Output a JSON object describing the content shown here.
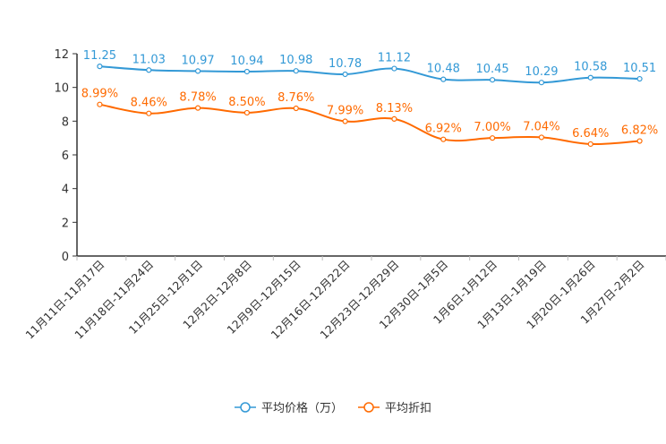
{
  "chart_data": {
    "type": "line",
    "title": "",
    "xlabel": "",
    "ylabel": "",
    "ylim": [
      0,
      12
    ],
    "yticks": [
      0,
      2,
      4,
      6,
      8,
      10,
      12
    ],
    "grid": false,
    "legend_position": "bottom-center",
    "categories": [
      "11月11日-11月17日",
      "11月18日-11月24日",
      "11月25日-12月1日",
      "12月2日-12月8日",
      "12月9日-12月15日",
      "12月16日-12月22日",
      "12月23日-12月29日",
      "12月30日-1月5日",
      "1月6日-1月12日",
      "1月13日-1月19日",
      "1月20日-1月26日",
      "1月27日-2月2日"
    ],
    "series": [
      {
        "name": "平均价格（万）",
        "color": "#3399d6",
        "values": [
          11.25,
          11.03,
          10.97,
          10.94,
          10.98,
          10.78,
          11.12,
          10.48,
          10.45,
          10.29,
          10.58,
          10.51
        ],
        "labels": [
          "11.25",
          "11.03",
          "10.97",
          "10.94",
          "10.98",
          "10.78",
          "11.12",
          "10.48",
          "10.45",
          "10.29",
          "10.58",
          "10.51"
        ]
      },
      {
        "name": "平均折扣",
        "color": "#ff6a00",
        "values": [
          8.99,
          8.46,
          8.78,
          8.5,
          8.76,
          7.99,
          8.13,
          6.92,
          7.0,
          7.04,
          6.64,
          6.82
        ],
        "labels": [
          "8.99%",
          "8.46%",
          "8.78%",
          "8.50%",
          "8.76%",
          "7.99%",
          "8.13%",
          "6.92%",
          "7.00%",
          "7.04%",
          "6.64%",
          "6.82%"
        ]
      }
    ]
  }
}
